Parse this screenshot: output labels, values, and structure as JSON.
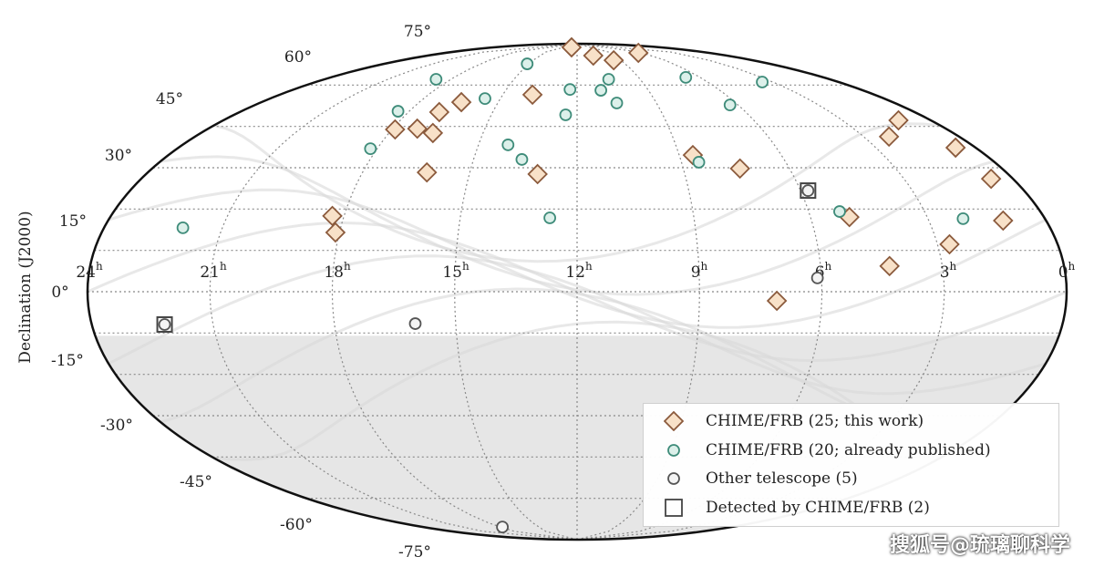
{
  "chart_data": {
    "type": "scatter",
    "projection": "all-sky elliptical (RA/Dec)",
    "ylabel": "Declination (J2000)",
    "ra_tick_labels": [
      "24h",
      "21h",
      "18h",
      "15h",
      "12h",
      "9h",
      "6h",
      "3h",
      "0h"
    ],
    "dec_tick_labels": [
      "75°",
      "60°",
      "45°",
      "30°",
      "15°",
      "0°",
      "-15°",
      "-30°",
      "-45°",
      "-60°",
      "-75°"
    ],
    "grid": true,
    "shaded_region": "southern sky below dec ≈ -16°",
    "legend_position": "bottom-right",
    "series": [
      {
        "name": "CHIME/FRB (25; this work)",
        "marker": "diamond",
        "color": "#8b5a3c",
        "fill": "#f8e1c8",
        "points": [
          [
            12.8,
            88.7
          ],
          [
            10.7,
            85.7
          ],
          [
            9.5,
            84.0
          ],
          [
            6.4,
            86.7
          ],
          [
            13.8,
            71.5
          ],
          [
            16.4,
            68.8
          ],
          [
            16.9,
            65.2
          ],
          [
            17.2,
            59.2
          ],
          [
            17.9,
            58.9
          ],
          [
            16.6,
            57.6
          ],
          [
            16.2,
            43.3
          ],
          [
            13.1,
            42.7
          ],
          [
            18.3,
            27.5
          ],
          [
            18.1,
            21.5
          ],
          [
            8.6,
            49.6
          ],
          [
            7.4,
            44.7
          ],
          [
            1.1,
            62.2
          ],
          [
            2.2,
            56.3
          ],
          [
            0.6,
            52.3
          ],
          [
            0.6,
            41.0
          ],
          [
            1.1,
            25.8
          ],
          [
            5.0,
            27.1
          ],
          [
            2.7,
            17.2
          ],
          [
            4.3,
            9.3
          ],
          [
            7.1,
            -3.3
          ]
        ]
      },
      {
        "name": "CHIME/FRB (20; already published)",
        "marker": "circle",
        "color": "#3f8c7a",
        "fill": "#dcf0ea",
        "points": [
          [
            18.7,
            77.1
          ],
          [
            15.1,
            82.7
          ],
          [
            15.6,
            70.1
          ],
          [
            18.4,
            65.5
          ],
          [
            18.2,
            51.9
          ],
          [
            14.1,
            53.3
          ],
          [
            13.6,
            48.0
          ],
          [
            12.3,
            73.4
          ],
          [
            12.4,
            64.2
          ],
          [
            11.0,
            73.1
          ],
          [
            10.5,
            77.1
          ],
          [
            10.5,
            68.5
          ],
          [
            6.7,
            77.8
          ],
          [
            3.5,
            76.1
          ],
          [
            6.3,
            67.8
          ],
          [
            8.5,
            47.0
          ],
          [
            12.7,
            26.8
          ],
          [
            22.0,
            23.2
          ],
          [
            5.2,
            29.1
          ],
          [
            2.1,
            26.5
          ]
        ]
      },
      {
        "name": "Other telescope (5)",
        "marker": "circle",
        "color": "#555555",
        "fill": "#f4f4f4",
        "points": [
          [
            16.0,
            -11.6
          ],
          [
            6.1,
            5.0
          ],
          [
            17.8,
            -85.4
          ],
          [
            22.2,
            -11.9
          ],
          [
            5.8,
            36.7
          ]
        ]
      },
      {
        "name": "Detected by CHIME/FRB (2)",
        "marker": "square",
        "color": "#444444",
        "fill": "none",
        "points": [
          [
            22.2,
            -11.9
          ],
          [
            5.8,
            36.7
          ]
        ]
      }
    ]
  },
  "watermark": "搜狐号@琉璃聊科学"
}
